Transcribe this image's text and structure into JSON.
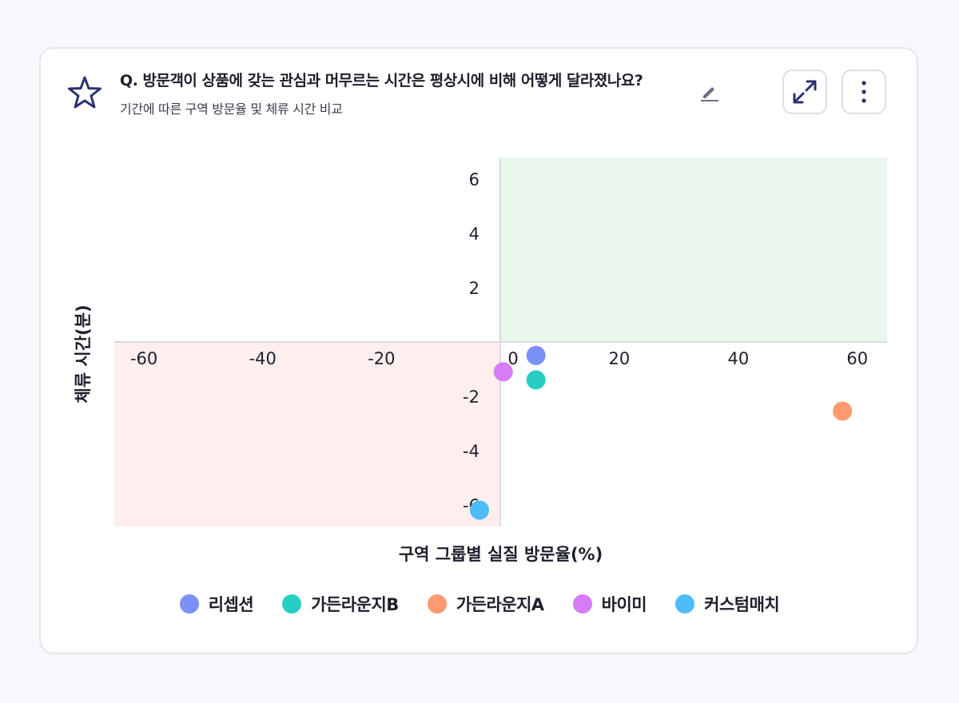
{
  "header": {
    "title": "Q. 방문객이 상품에 갖는 관심과 머무르는 시간은 평상시에 비해 어떻게 달라졌나요?",
    "subtitle": "기간에 따른 구역 방문율 및 체류 시간 비교"
  },
  "icons": {
    "favorite": "star-outline-icon",
    "edit": "pencil-icon",
    "expand": "expand-arrows-icon",
    "more": "vertical-dots-icon"
  },
  "colors": {
    "positive_quadrant": "#e9f7ec",
    "negative_quadrant": "#ffeeee",
    "axis": "#d9dbe3"
  },
  "chart_data": {
    "type": "scatter",
    "title": "Q. 방문객이 상품에 갖는 관심과 머무르는 시간은 평상시에 비해 어떻게 달라졌나요?",
    "subtitle": "기간에 따른 구역 방문율 및 체류 시간 비교",
    "xlabel": "구역 그룹별 실질 방문율(%)",
    "ylabel": "체류 시간(분)",
    "xlim": [
      -65,
      65
    ],
    "ylim": [
      -6.8,
      6.8
    ],
    "xticks": [
      -60,
      -40,
      -20,
      0,
      20,
      40,
      60
    ],
    "yticks": [
      -6,
      -4,
      -2,
      2,
      4,
      6
    ],
    "grid": false,
    "legend_position": "bottom",
    "series": [
      {
        "name": "리셉션",
        "color": "#7b91f7",
        "points": [
          {
            "x": 6,
            "y": -0.5
          }
        ]
      },
      {
        "name": "가든라운지B",
        "color": "#26cfc1",
        "points": [
          {
            "x": 6,
            "y": -1.4
          }
        ]
      },
      {
        "name": "가든라운지A",
        "color": "#ff9a70",
        "points": [
          {
            "x": 57.5,
            "y": -2.55
          }
        ]
      },
      {
        "name": "바이미",
        "color": "#d77cf6",
        "points": [
          {
            "x": 0.5,
            "y": -1.1
          }
        ]
      },
      {
        "name": "커스텀매치",
        "color": "#4ebcf8",
        "points": [
          {
            "x": -3.5,
            "y": -6.2
          }
        ]
      }
    ]
  }
}
